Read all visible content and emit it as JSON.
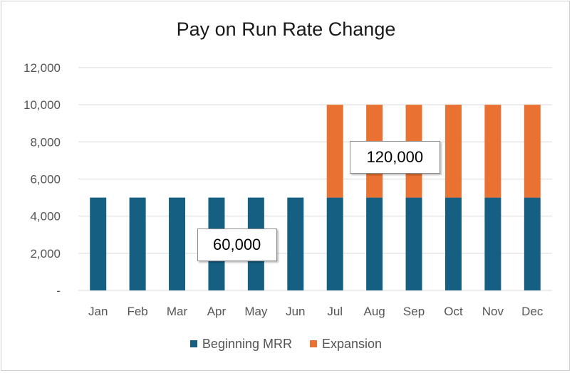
{
  "chart_data": {
    "type": "bar",
    "stacked": true,
    "title": "Pay on Run Rate Change",
    "categories": [
      "Jan",
      "Feb",
      "Mar",
      "Apr",
      "May",
      "Jun",
      "Jul",
      "Aug",
      "Sep",
      "Oct",
      "Nov",
      "Dec"
    ],
    "series": [
      {
        "name": "Beginning MRR",
        "color": "#156082",
        "values": [
          5000,
          5000,
          5000,
          5000,
          5000,
          5000,
          5000,
          5000,
          5000,
          5000,
          5000,
          5000
        ]
      },
      {
        "name": "Expansion",
        "color": "#E97132",
        "values": [
          0,
          0,
          0,
          0,
          0,
          0,
          5000,
          5000,
          5000,
          5000,
          5000,
          5000
        ]
      }
    ],
    "ylim": [
      0,
      12000
    ],
    "yticks": [
      {
        "value": 0,
        "label": "-"
      },
      {
        "value": 2000,
        "label": "2,000"
      },
      {
        "value": 4000,
        "label": "4,000"
      },
      {
        "value": 6000,
        "label": "6,000"
      },
      {
        "value": 8000,
        "label": "8,000"
      },
      {
        "value": 10000,
        "label": "10,000"
      },
      {
        "value": 12000,
        "label": "12,000"
      }
    ],
    "grid": true,
    "legend_position": "bottom",
    "annotations": [
      {
        "text": "60,000",
        "anchor_category": "Apr",
        "anchor_value": 2500
      },
      {
        "text": "120,000",
        "anchor_category": "Aug",
        "anchor_value": 7200
      }
    ]
  }
}
